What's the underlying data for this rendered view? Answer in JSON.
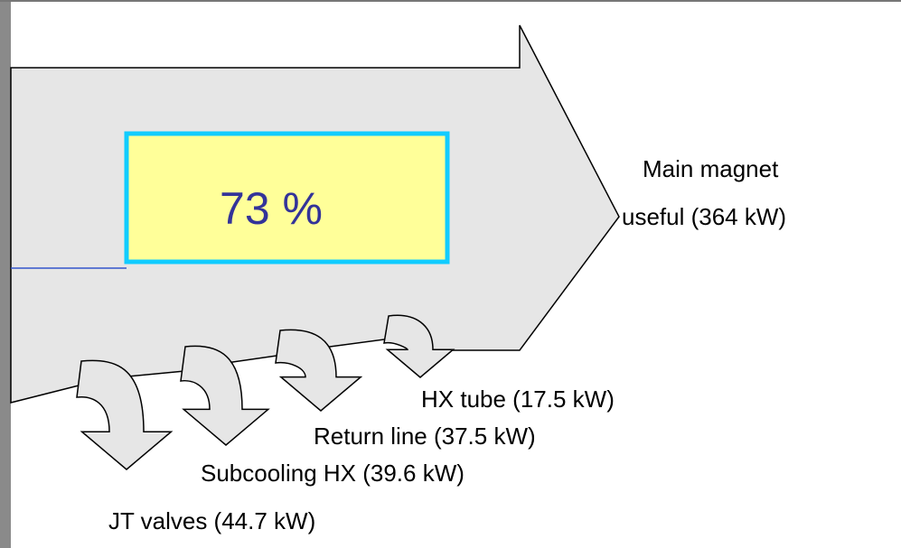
{
  "box": {
    "text": "73 %"
  },
  "main": {
    "lines": [
      "Main magnet",
      "useful (364 kW)"
    ]
  },
  "losses": [
    {
      "label": "HX tube (17.5 kW)"
    },
    {
      "label": "Return line (37.5 kW)"
    },
    {
      "label": "Subcooling HX (39.6 kW)"
    },
    {
      "label": "JT valves (44.7 kW)"
    }
  ]
}
